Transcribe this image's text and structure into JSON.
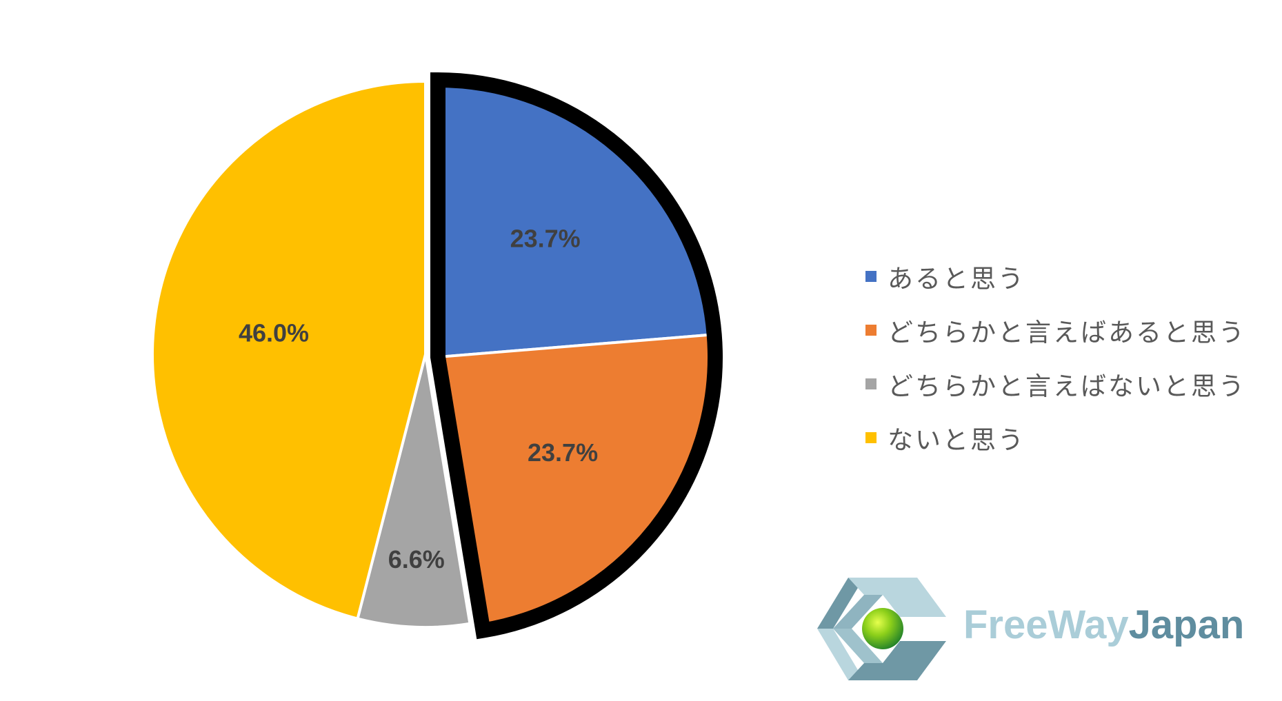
{
  "chart_data": {
    "type": "pie",
    "title": "",
    "start_angle_deg": 0,
    "direction": "clockwise",
    "slices": [
      {
        "label": "あると思う",
        "value": 23.7,
        "display": "23.7%",
        "color": "#4472C4",
        "exploded": true
      },
      {
        "label": "どちらかと言えばあると思う",
        "value": 23.7,
        "display": "23.7%",
        "color": "#ED7D31",
        "exploded": true
      },
      {
        "label": "どちらかと言えばないと思う",
        "value": 6.6,
        "display": "6.6%",
        "color": "#A5A5A5",
        "exploded": false
      },
      {
        "label": "ないと思う",
        "value": 46.0,
        "display": "46.0%",
        "color": "#FFC000",
        "exploded": false
      }
    ],
    "highlight": {
      "slices": [
        0,
        1
      ],
      "outline_color": "#000000"
    },
    "legend": {
      "position": "right"
    }
  },
  "logo": {
    "text_part1": "FreeWay",
    "text_part2": "Japan"
  }
}
